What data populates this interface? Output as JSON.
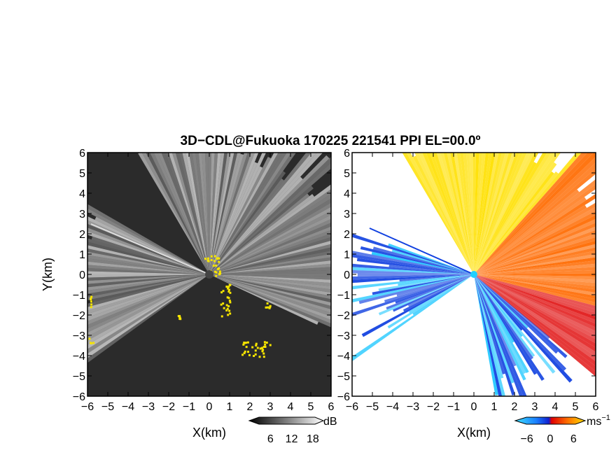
{
  "title": "3D−CDL@Fukuoka 170225 221541 PPI EL=00.0º",
  "chart_data": [
    {
      "type": "heatmap",
      "panel": "backscatter",
      "xlabel": "X(km)",
      "ylabel": "Y(km)",
      "xlim": [
        -6,
        6
      ],
      "ylim": [
        -6,
        6
      ],
      "xticks": [
        "−6",
        "−5",
        "−4",
        "−3",
        "−2",
        "−1",
        "0",
        "1",
        "2",
        "3",
        "4",
        "5",
        "6"
      ],
      "yticks": [
        "−6",
        "−5",
        "−4",
        "−3",
        "−2",
        "−1",
        "0",
        "1",
        "2",
        "3",
        "4",
        "5",
        "6"
      ],
      "colorbar": {
        "unit": "dB",
        "ticks": [
          "6",
          "12",
          "18"
        ],
        "tick_values": [
          6,
          12,
          18
        ],
        "range": [
          0,
          21
        ]
      },
      "colors": {
        "background": "#2b2b2b",
        "beam": "#e8e8e8",
        "echo_overlay": "#f5e400"
      },
      "beam_sectors_deg": [
        [
          -25,
          120
        ],
        [
          150,
          215
        ]
      ]
    },
    {
      "type": "heatmap",
      "panel": "doppler_velocity",
      "xlabel": "X(km)",
      "ylabel": "",
      "xlim": [
        -6,
        6
      ],
      "ylim": [
        -6,
        6
      ],
      "xticks": [
        "−6",
        "−5",
        "−4",
        "−3",
        "−2",
        "−1",
        "0",
        "1",
        "2",
        "3",
        "4",
        "5",
        "6"
      ],
      "yticks": [
        "−6",
        "−5",
        "−4",
        "−3",
        "−2",
        "−1",
        "0",
        "1",
        "2",
        "3",
        "4",
        "5",
        "6"
      ],
      "colorbar": {
        "unit": "ms",
        "unit_sup": "−1",
        "ticks": [
          "−6",
          "0",
          "6"
        ],
        "tick_values": [
          -6,
          0,
          6
        ],
        "range": [
          -9,
          9
        ]
      },
      "colors": {
        "neg_far": "#20c8ff",
        "neg": "#1040e0",
        "zero": "#e01010",
        "pos": "#ff6a00",
        "pos_far": "#ffe000"
      },
      "approaching_sectors_deg": [
        [
          160,
          215
        ],
        [
          -80,
          -40
        ]
      ],
      "receding_sectors_deg": [
        [
          -40,
          120
        ]
      ]
    }
  ]
}
